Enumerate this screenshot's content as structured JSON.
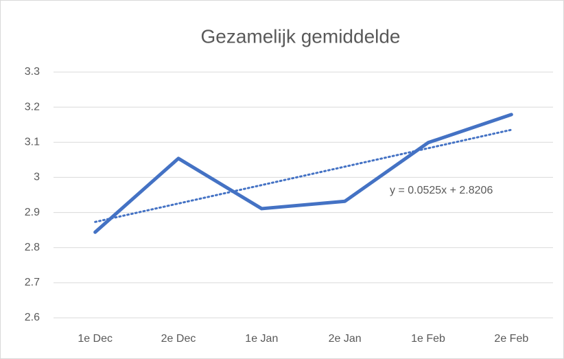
{
  "chart_data": {
    "type": "line",
    "title": "Gezamelijk gemiddelde",
    "categories": [
      "1e Dec",
      "2e Dec",
      "1e Jan",
      "2e Jan",
      "1e Feb",
      "2e Feb"
    ],
    "series": [
      {
        "color": "#4472c4",
        "values": [
          2.844,
          3.054,
          2.911,
          2.932,
          3.099,
          3.179
        ]
      }
    ],
    "trendline": {
      "label": "y = 0.0525x + 2.8206",
      "slope": 0.0525,
      "intercept": 2.8206
    },
    "ylim": [
      2.6,
      3.3
    ],
    "yticks": [
      2.6,
      2.7,
      2.8,
      2.9,
      3,
      3.1,
      3.2,
      3.3
    ],
    "grid": true
  }
}
